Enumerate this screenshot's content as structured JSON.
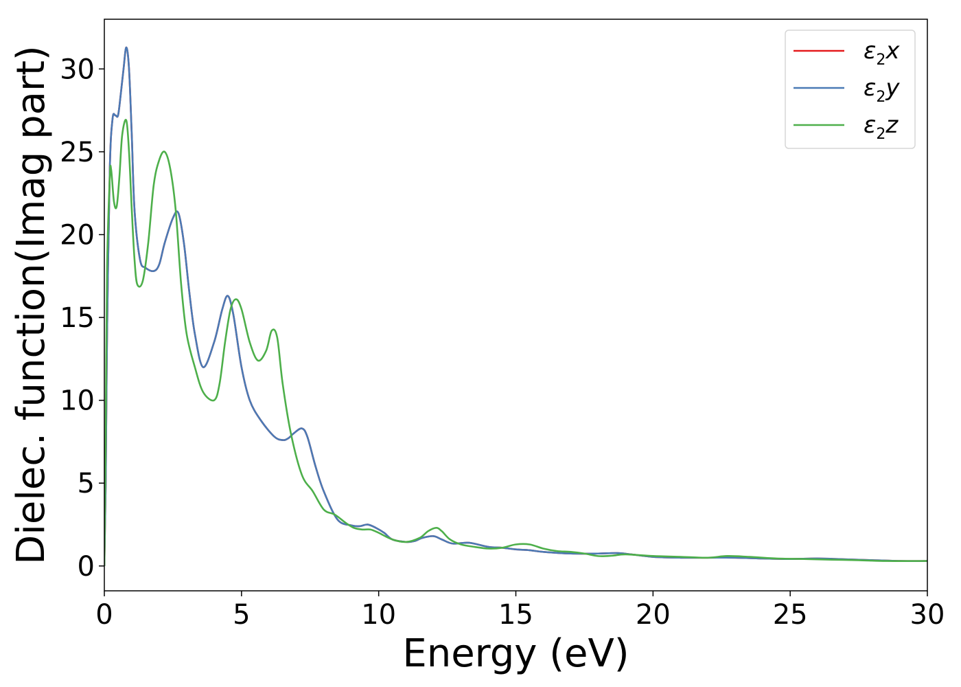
{
  "chart_data": {
    "type": "line",
    "xlabel": "Energy (eV)",
    "ylabel": "Dielec. function(Imag part)",
    "xlim": [
      0,
      30
    ],
    "ylim": [
      -1.5,
      33
    ],
    "x_ticks": [
      0,
      5,
      10,
      15,
      20,
      25,
      30
    ],
    "y_ticks": [
      0,
      5,
      10,
      15,
      20,
      25,
      30
    ],
    "grid": false,
    "legend_position": "top-right",
    "series": [
      {
        "name": "ε2x",
        "legend_base": "ε",
        "legend_sub": "2",
        "legend_suffix": "x",
        "color": "#e41a1c",
        "x": [
          0,
          0.05,
          0.1,
          0.2,
          0.3,
          0.4,
          0.5,
          0.6,
          0.7,
          0.8,
          0.9,
          1.0,
          1.1,
          1.3,
          1.5,
          1.8,
          2.0,
          2.2,
          2.5,
          2.7,
          2.9,
          3.1,
          3.3,
          3.6,
          4.0,
          4.3,
          4.5,
          4.7,
          5.0,
          5.3,
          5.7,
          6.2,
          6.5,
          6.7,
          6.9,
          7.2,
          7.4,
          7.7,
          8.0,
          8.5,
          9.0,
          9.3,
          9.6,
          9.9,
          10.2,
          10.5,
          11.0,
          11.3,
          11.6,
          12.0,
          12.3,
          12.7,
          13.3,
          14.0,
          14.5,
          15.0,
          15.5,
          16.0,
          17.0,
          18.0,
          18.7,
          19.2,
          20.0,
          21.0,
          22.0,
          23.0,
          24.0,
          25.0,
          26.0,
          27.0,
          28.0,
          29.0,
          30.0
        ],
        "values": [
          0,
          5,
          14,
          24,
          27,
          27.2,
          27.2,
          28.5,
          30,
          31.3,
          30,
          26,
          21.5,
          18.5,
          18,
          17.8,
          18.2,
          19.5,
          21,
          21.3,
          19.5,
          16.5,
          14,
          12,
          13.5,
          15.5,
          16.3,
          15.2,
          12,
          10,
          8.8,
          7.8,
          7.6,
          7.7,
          8.0,
          8.3,
          7.8,
          6.0,
          4.5,
          2.8,
          2.45,
          2.4,
          2.5,
          2.3,
          2.0,
          1.6,
          1.45,
          1.5,
          1.7,
          1.8,
          1.6,
          1.35,
          1.4,
          1.15,
          1.1,
          1.0,
          0.95,
          0.85,
          0.75,
          0.75,
          0.78,
          0.7,
          0.55,
          0.5,
          0.5,
          0.5,
          0.45,
          0.42,
          0.45,
          0.4,
          0.35,
          0.3,
          0.3
        ]
      },
      {
        "name": "ε2y",
        "legend_base": "ε",
        "legend_sub": "2",
        "legend_suffix": "y",
        "color": "#4a7ab5",
        "x": [
          0,
          0.05,
          0.1,
          0.2,
          0.3,
          0.4,
          0.5,
          0.6,
          0.7,
          0.8,
          0.9,
          1.0,
          1.1,
          1.3,
          1.5,
          1.8,
          2.0,
          2.2,
          2.5,
          2.7,
          2.9,
          3.1,
          3.3,
          3.6,
          4.0,
          4.3,
          4.5,
          4.7,
          5.0,
          5.3,
          5.7,
          6.2,
          6.5,
          6.7,
          6.9,
          7.2,
          7.4,
          7.7,
          8.0,
          8.5,
          9.0,
          9.3,
          9.6,
          9.9,
          10.2,
          10.5,
          11.0,
          11.3,
          11.6,
          12.0,
          12.3,
          12.7,
          13.3,
          14.0,
          14.5,
          15.0,
          15.5,
          16.0,
          17.0,
          18.0,
          18.7,
          19.2,
          20.0,
          21.0,
          22.0,
          23.0,
          24.0,
          25.0,
          26.0,
          27.0,
          28.0,
          29.0,
          30.0
        ],
        "values": [
          0,
          5,
          14,
          24,
          27,
          27.2,
          27.2,
          28.5,
          30,
          31.3,
          30,
          26,
          21.5,
          18.5,
          18,
          17.8,
          18.2,
          19.5,
          21,
          21.3,
          19.5,
          16.5,
          14,
          12,
          13.5,
          15.5,
          16.3,
          15.2,
          12,
          10,
          8.8,
          7.8,
          7.6,
          7.7,
          8.0,
          8.3,
          7.8,
          6.0,
          4.5,
          2.8,
          2.45,
          2.4,
          2.5,
          2.3,
          2.0,
          1.6,
          1.45,
          1.5,
          1.7,
          1.8,
          1.6,
          1.35,
          1.4,
          1.15,
          1.1,
          1.0,
          0.95,
          0.85,
          0.75,
          0.75,
          0.78,
          0.7,
          0.55,
          0.5,
          0.5,
          0.5,
          0.45,
          0.42,
          0.45,
          0.4,
          0.35,
          0.3,
          0.3
        ]
      },
      {
        "name": "ε2z",
        "legend_base": "ε",
        "legend_sub": "2",
        "legend_suffix": "z",
        "color": "#4daf4a",
        "x": [
          0,
          0.05,
          0.1,
          0.2,
          0.25,
          0.35,
          0.45,
          0.55,
          0.65,
          0.8,
          0.9,
          1.0,
          1.1,
          1.2,
          1.4,
          1.6,
          1.8,
          2.0,
          2.2,
          2.4,
          2.6,
          2.8,
          3.0,
          3.3,
          3.6,
          4.0,
          4.2,
          4.4,
          4.6,
          4.8,
          5.0,
          5.3,
          5.6,
          5.9,
          6.1,
          6.3,
          6.5,
          6.8,
          7.2,
          7.6,
          8.0,
          8.4,
          8.8,
          9.1,
          9.4,
          9.7,
          10.0,
          10.5,
          11.0,
          11.5,
          11.8,
          12.1,
          12.3,
          12.6,
          13.0,
          13.5,
          14.0,
          14.5,
          15.0,
          15.5,
          16.0,
          16.5,
          17.0,
          17.5,
          18.0,
          18.5,
          19.0,
          20.0,
          21.0,
          22.0,
          22.7,
          23.5,
          24.5,
          25.5,
          26.5,
          27.5,
          28.5,
          30.0
        ],
        "values": [
          0,
          8,
          18,
          23.5,
          23.9,
          22,
          21.7,
          23.5,
          26,
          26.9,
          25,
          21.5,
          18.5,
          17,
          17.2,
          19.5,
          23,
          24.5,
          25,
          24,
          21.5,
          17,
          14,
          12,
          10.5,
          10,
          11,
          13.5,
          15.5,
          16.1,
          15.5,
          13.5,
          12.4,
          13,
          14.2,
          13.8,
          11,
          8,
          5.5,
          4.5,
          3.4,
          3.1,
          2.6,
          2.3,
          2.2,
          2.2,
          2.0,
          1.6,
          1.45,
          1.7,
          2.1,
          2.3,
          2.1,
          1.6,
          1.3,
          1.15,
          1.05,
          1.1,
          1.3,
          1.3,
          1.05,
          0.9,
          0.85,
          0.75,
          0.6,
          0.62,
          0.7,
          0.6,
          0.55,
          0.5,
          0.6,
          0.55,
          0.45,
          0.42,
          0.38,
          0.35,
          0.3,
          0.3
        ]
      }
    ]
  }
}
